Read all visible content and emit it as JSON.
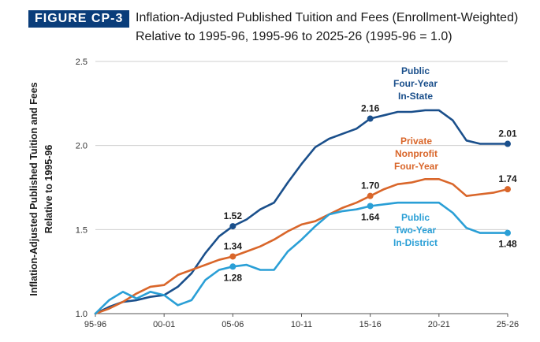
{
  "figure": {
    "badge": "FIGURE CP-3",
    "title_line1": "Inflation-Adjusted Published Tuition and Fees (Enrollment-Weighted)",
    "title_line2": "Relative to 1995-96, 1995-96 to 2025-26 (1995-96 = 1.0)"
  },
  "chart_data": {
    "type": "line",
    "ylabel_line1": "Inflation-Adjusted Published Tuition and Fees",
    "ylabel_line2": "Relative to 1995-96",
    "xlabel": "",
    "ylim": [
      1.0,
      2.5
    ],
    "yticks": [
      "1.0",
      "1.5",
      "2.0",
      "2.5"
    ],
    "x_tick_labels": [
      "95-96",
      "00-01",
      "05-06",
      "10-11",
      "15-16",
      "20-21",
      "25-26"
    ],
    "x_tick_positions": [
      0,
      5,
      10,
      15,
      20,
      25,
      30
    ],
    "series": [
      {
        "name": "Public Four-Year In-State",
        "label_lines": [
          "Public",
          "Four-Year",
          "In-State"
        ],
        "color": "#1a4f8b",
        "values": [
          1.0,
          1.04,
          1.07,
          1.08,
          1.1,
          1.11,
          1.16,
          1.24,
          1.36,
          1.46,
          1.52,
          1.56,
          1.62,
          1.66,
          1.78,
          1.89,
          1.99,
          2.04,
          2.07,
          2.1,
          2.16,
          2.18,
          2.2,
          2.2,
          2.21,
          2.21,
          2.15,
          2.03,
          2.01,
          2.01,
          2.01
        ]
      },
      {
        "name": "Private Nonprofit Four-Year",
        "label_lines": [
          "Private",
          "Nonprofit",
          "Four-Year"
        ],
        "color": "#d9662a",
        "values": [
          1.0,
          1.03,
          1.07,
          1.12,
          1.16,
          1.17,
          1.23,
          1.26,
          1.29,
          1.32,
          1.34,
          1.37,
          1.4,
          1.44,
          1.49,
          1.53,
          1.55,
          1.59,
          1.63,
          1.66,
          1.7,
          1.74,
          1.77,
          1.78,
          1.8,
          1.8,
          1.77,
          1.7,
          1.71,
          1.72,
          1.74
        ]
      },
      {
        "name": "Public Two-Year In-District",
        "label_lines": [
          "Public",
          "Two-Year",
          "In-District"
        ],
        "color": "#2a9fd6",
        "values": [
          1.0,
          1.08,
          1.13,
          1.09,
          1.13,
          1.11,
          1.05,
          1.08,
          1.2,
          1.26,
          1.28,
          1.29,
          1.26,
          1.26,
          1.37,
          1.44,
          1.52,
          1.59,
          1.61,
          1.62,
          1.64,
          1.65,
          1.66,
          1.66,
          1.66,
          1.66,
          1.6,
          1.51,
          1.48,
          1.48,
          1.48
        ]
      }
    ],
    "annotations": [
      {
        "series": 0,
        "index": 10,
        "text": "1.52",
        "pos": "above"
      },
      {
        "series": 0,
        "index": 20,
        "text": "2.16",
        "pos": "above"
      },
      {
        "series": 0,
        "index": 30,
        "text": "2.01",
        "pos": "above"
      },
      {
        "series": 1,
        "index": 10,
        "text": "1.34",
        "pos": "above"
      },
      {
        "series": 1,
        "index": 20,
        "text": "1.70",
        "pos": "above"
      },
      {
        "series": 1,
        "index": 30,
        "text": "1.74",
        "pos": "above"
      },
      {
        "series": 2,
        "index": 10,
        "text": "1.28",
        "pos": "below"
      },
      {
        "series": 2,
        "index": 20,
        "text": "1.64",
        "pos": "below"
      },
      {
        "series": 2,
        "index": 30,
        "text": "1.48",
        "pos": "below"
      }
    ]
  }
}
